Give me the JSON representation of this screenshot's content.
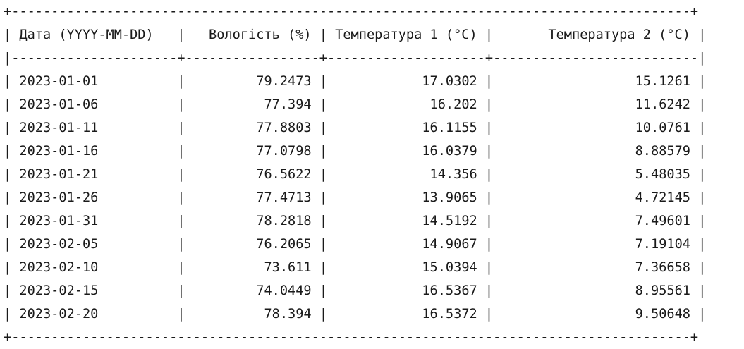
{
  "table": {
    "border_top": "+--------------------------------------------------------------------------------------+",
    "border_bottom": "+--------------------------------------------------------------------------------------+",
    "separator": "|---------------------+-----------------+--------------------+--------------------------|",
    "headers": [
      {
        "text": "Дата (YYYY-MM-DD)",
        "align": "left"
      },
      {
        "text": "Вологість (%)",
        "align": "right"
      },
      {
        "text": "Температура 1 (°C)",
        "align": "right"
      },
      {
        "text": "Температура 2 (°C)",
        "align": "right"
      }
    ],
    "rows": [
      [
        "2023-01-01",
        "79.2473",
        "17.0302",
        "15.1261"
      ],
      [
        "2023-01-06",
        "77.394",
        "16.202",
        "11.6242"
      ],
      [
        "2023-01-11",
        "77.8803",
        "16.1155",
        "10.0761"
      ],
      [
        "2023-01-16",
        "77.0798",
        "16.0379",
        "8.88579"
      ],
      [
        "2023-01-21",
        "76.5622",
        "14.356",
        "5.48035"
      ],
      [
        "2023-01-26",
        "77.4713",
        "13.9065",
        "4.72145"
      ],
      [
        "2023-01-31",
        "78.2818",
        "14.5192",
        "7.49601"
      ],
      [
        "2023-02-05",
        "76.2065",
        "14.9067",
        "7.19104"
      ],
      [
        "2023-02-10",
        "73.611",
        "15.0394",
        "7.36658"
      ],
      [
        "2023-02-15",
        "74.0449",
        "16.5367",
        "8.95561"
      ],
      [
        "2023-02-20",
        "78.394",
        "16.5372",
        "9.50648"
      ]
    ]
  }
}
